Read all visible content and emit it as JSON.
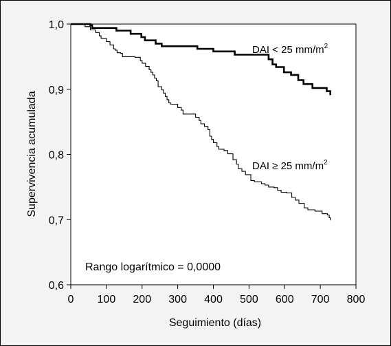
{
  "chart_data": {
    "type": "line",
    "subtype": "kaplan-meier step curves",
    "xlabel": "Seguimiento (días)",
    "ylabel": "Supervivencia acumulada",
    "xlim": [
      0,
      800
    ],
    "ylim": [
      0.6,
      1.0
    ],
    "x_ticks": [
      0,
      100,
      200,
      300,
      400,
      500,
      600,
      700,
      800
    ],
    "x_tick_labels": [
      "0",
      "100",
      "200",
      "300",
      "400",
      "500",
      "600",
      "700",
      "800"
    ],
    "y_ticks": [
      0.6,
      0.7,
      0.8,
      0.9,
      1.0
    ],
    "y_tick_labels": [
      "0,6",
      "0,7",
      "0,8",
      "0,9",
      "1,0"
    ],
    "grid": false,
    "annotation": "Rango logarítmico = 0,0000",
    "series": [
      {
        "name": "DAI < 25 mm/m2",
        "label_main": "DAI < 25 mm/m",
        "label_sup": "2",
        "color": "#000000",
        "style": "thick",
        "points": [
          [
            0,
            1.0
          ],
          [
            55,
            0.998
          ],
          [
            60,
            0.994
          ],
          [
            125,
            0.994
          ],
          [
            128,
            0.99
          ],
          [
            165,
            0.99
          ],
          [
            168,
            0.985
          ],
          [
            195,
            0.985
          ],
          [
            198,
            0.98
          ],
          [
            205,
            0.98
          ],
          [
            208,
            0.975
          ],
          [
            235,
            0.975
          ],
          [
            238,
            0.97
          ],
          [
            250,
            0.97
          ],
          [
            255,
            0.966
          ],
          [
            350,
            0.966
          ],
          [
            355,
            0.962
          ],
          [
            395,
            0.962
          ],
          [
            400,
            0.958
          ],
          [
            455,
            0.958
          ],
          [
            460,
            0.953
          ],
          [
            550,
            0.953
          ],
          [
            555,
            0.946
          ],
          [
            563,
            0.946
          ],
          [
            566,
            0.938
          ],
          [
            573,
            0.938
          ],
          [
            576,
            0.934
          ],
          [
            595,
            0.934
          ],
          [
            598,
            0.926
          ],
          [
            615,
            0.926
          ],
          [
            618,
            0.922
          ],
          [
            635,
            0.922
          ],
          [
            638,
            0.914
          ],
          [
            650,
            0.914
          ],
          [
            653,
            0.908
          ],
          [
            675,
            0.908
          ],
          [
            678,
            0.902
          ],
          [
            715,
            0.902
          ],
          [
            718,
            0.897
          ],
          [
            725,
            0.897
          ],
          [
            728,
            0.891
          ]
        ]
      },
      {
        "name": "DAI ≥ 25 mm/m2",
        "label_main": "DAI ≥ 25 mm/m",
        "label_sup": "2",
        "color": "#000000",
        "style": "thin",
        "points": [
          [
            0,
            1.0
          ],
          [
            40,
            0.996
          ],
          [
            55,
            0.991
          ],
          [
            70,
            0.987
          ],
          [
            80,
            0.982
          ],
          [
            85,
            0.978
          ],
          [
            100,
            0.973
          ],
          [
            110,
            0.968
          ],
          [
            120,
            0.962
          ],
          [
            125,
            0.96
          ],
          [
            130,
            0.956
          ],
          [
            140,
            0.955
          ],
          [
            145,
            0.95
          ],
          [
            160,
            0.95
          ],
          [
            180,
            0.949
          ],
          [
            195,
            0.944
          ],
          [
            200,
            0.94
          ],
          [
            210,
            0.935
          ],
          [
            220,
            0.93
          ],
          [
            225,
            0.926
          ],
          [
            230,
            0.922
          ],
          [
            235,
            0.917
          ],
          [
            240,
            0.913
          ],
          [
            245,
            0.904
          ],
          [
            255,
            0.899
          ],
          [
            260,
            0.894
          ],
          [
            265,
            0.889
          ],
          [
            270,
            0.884
          ],
          [
            275,
            0.879
          ],
          [
            280,
            0.877
          ],
          [
            290,
            0.877
          ],
          [
            300,
            0.872
          ],
          [
            310,
            0.868
          ],
          [
            315,
            0.862
          ],
          [
            345,
            0.862
          ],
          [
            350,
            0.857
          ],
          [
            360,
            0.852
          ],
          [
            365,
            0.847
          ],
          [
            375,
            0.843
          ],
          [
            385,
            0.838
          ],
          [
            390,
            0.828
          ],
          [
            395,
            0.823
          ],
          [
            400,
            0.818
          ],
          [
            410,
            0.812
          ],
          [
            415,
            0.808
          ],
          [
            425,
            0.808
          ],
          [
            430,
            0.806
          ],
          [
            440,
            0.801
          ],
          [
            445,
            0.801
          ],
          [
            455,
            0.792
          ],
          [
            465,
            0.785
          ],
          [
            470,
            0.778
          ],
          [
            480,
            0.774
          ],
          [
            490,
            0.769
          ],
          [
            505,
            0.76
          ],
          [
            515,
            0.758
          ],
          [
            525,
            0.758
          ],
          [
            535,
            0.755
          ],
          [
            545,
            0.753
          ],
          [
            555,
            0.75
          ],
          [
            570,
            0.749
          ],
          [
            580,
            0.745
          ],
          [
            590,
            0.742
          ],
          [
            605,
            0.741
          ],
          [
            620,
            0.734
          ],
          [
            630,
            0.73
          ],
          [
            640,
            0.725
          ],
          [
            655,
            0.718
          ],
          [
            665,
            0.715
          ],
          [
            685,
            0.713
          ],
          [
            705,
            0.709
          ],
          [
            720,
            0.707
          ],
          [
            725,
            0.703
          ],
          [
            728,
            0.699
          ]
        ]
      }
    ]
  }
}
